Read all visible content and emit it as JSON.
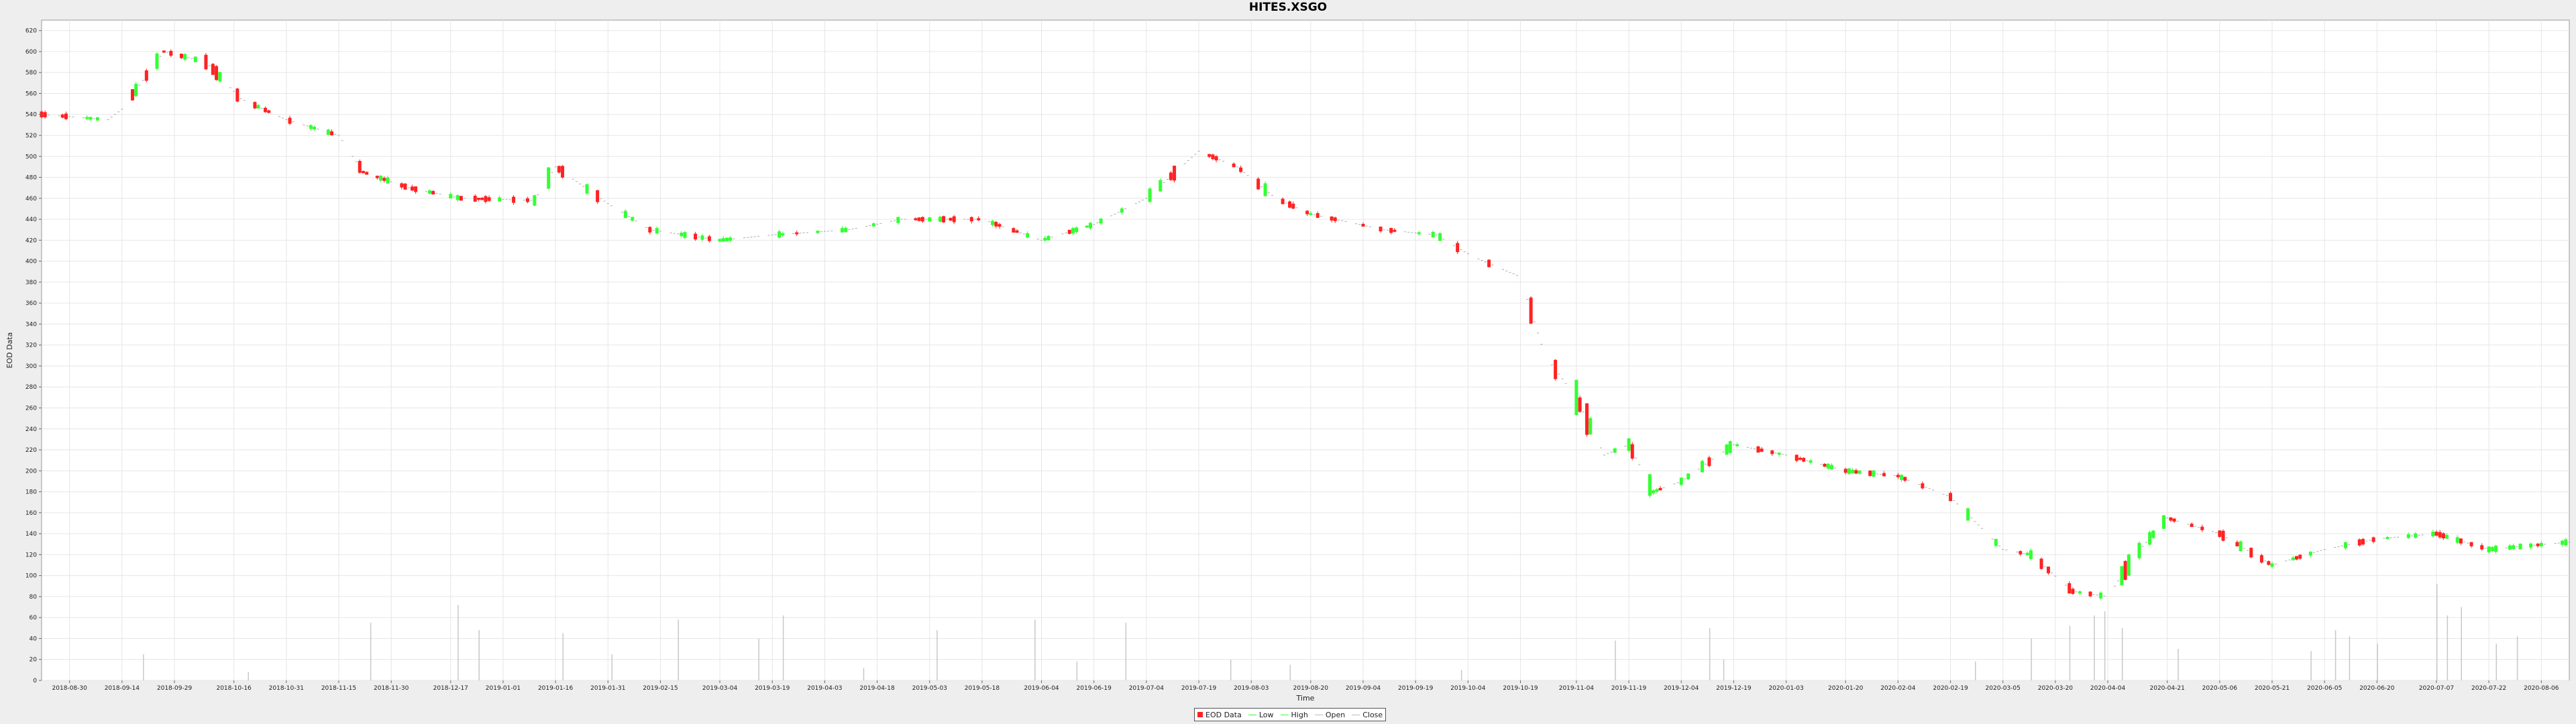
{
  "chart_data": {
    "type": "candlestick",
    "title": "HITES.XSGO",
    "xlabel": "Time",
    "ylabel": "EOD Data",
    "ylim": [
      0,
      630
    ],
    "yticks": [
      0,
      20,
      40,
      60,
      80,
      100,
      120,
      140,
      160,
      180,
      200,
      220,
      240,
      260,
      280,
      300,
      320,
      340,
      360,
      380,
      400,
      420,
      440,
      460,
      480,
      500,
      520,
      540,
      560,
      580,
      600,
      620
    ],
    "xrange": [
      "2018-08-22",
      "2020-08-14"
    ],
    "xticks": [
      "2018-08-30",
      "2018-09-14",
      "2018-09-29",
      "2018-10-16",
      "2018-10-31",
      "2018-11-15",
      "2018-11-30",
      "2018-12-17",
      "2019-01-01",
      "2019-01-16",
      "2019-01-31",
      "2019-02-15",
      "2019-03-04",
      "2019-03-19",
      "2019-04-03",
      "2019-04-18",
      "2019-05-03",
      "2019-05-18",
      "2019-06-04",
      "2019-06-19",
      "2019-07-04",
      "2019-07-19",
      "2019-08-03",
      "2019-08-20",
      "2019-09-04",
      "2019-09-19",
      "2019-10-04",
      "2019-10-19",
      "2019-11-04",
      "2019-11-19",
      "2019-12-04",
      "2019-12-19",
      "2020-01-03",
      "2020-01-20",
      "2020-02-04",
      "2020-02-19",
      "2020-03-05",
      "2020-03-20",
      "2020-04-04",
      "2020-04-21",
      "2020-05-06",
      "2020-05-21",
      "2020-06-05",
      "2020-06-20",
      "2020-07-07",
      "2020-07-22",
      "2020-08-06"
    ],
    "grid": true,
    "legend_position": "bottom-center",
    "legend": [
      "EOD Data",
      "Low",
      "High",
      "Open",
      "Close"
    ],
    "colors": {
      "up": "#33ff33",
      "down": "#ff2222",
      "volume": "#c8c8c8",
      "grid": "#e6e6e6",
      "plot_bg": "#ffffff"
    },
    "price_path": [
      [
        "2018-08-22",
        540
      ],
      [
        "2018-09-10",
        535
      ],
      [
        "2018-09-14",
        545
      ],
      [
        "2018-09-26",
        600
      ],
      [
        "2018-10-08",
        590
      ],
      [
        "2018-10-18",
        555
      ],
      [
        "2018-10-31",
        535
      ],
      [
        "2018-11-15",
        520
      ],
      [
        "2018-11-22",
        485
      ],
      [
        "2018-12-05",
        470
      ],
      [
        "2018-12-20",
        460
      ],
      [
        "2019-01-10",
        458
      ],
      [
        "2019-01-16",
        490
      ],
      [
        "2019-01-31",
        455
      ],
      [
        "2019-02-12",
        430
      ],
      [
        "2019-03-04",
        420
      ],
      [
        "2019-03-19",
        425
      ],
      [
        "2019-04-10",
        430
      ],
      [
        "2019-04-25",
        440
      ],
      [
        "2019-05-18",
        440
      ],
      [
        "2019-06-04",
        420
      ],
      [
        "2019-06-19",
        435
      ],
      [
        "2019-07-04",
        460
      ],
      [
        "2019-07-19",
        505
      ],
      [
        "2019-07-30",
        490
      ],
      [
        "2019-08-10",
        460
      ],
      [
        "2019-08-20",
        445
      ],
      [
        "2019-09-10",
        430
      ],
      [
        "2019-09-25",
        425
      ],
      [
        "2019-10-05",
        405
      ],
      [
        "2019-10-19",
        385
      ],
      [
        "2019-10-26",
        310
      ],
      [
        "2019-11-04",
        270
      ],
      [
        "2019-11-12",
        215
      ],
      [
        "2019-11-19",
        225
      ],
      [
        "2019-11-26",
        180
      ],
      [
        "2019-12-04",
        190
      ],
      [
        "2019-12-19",
        225
      ],
      [
        "2020-01-03",
        215
      ],
      [
        "2020-01-20",
        200
      ],
      [
        "2020-02-04",
        195
      ],
      [
        "2020-02-19",
        175
      ],
      [
        "2020-03-05",
        125
      ],
      [
        "2020-03-13",
        120
      ],
      [
        "2020-03-25",
        85
      ],
      [
        "2020-04-04",
        80
      ],
      [
        "2020-04-12",
        120
      ],
      [
        "2020-04-21",
        155
      ],
      [
        "2020-05-06",
        140
      ],
      [
        "2020-05-21",
        110
      ],
      [
        "2020-06-05",
        125
      ],
      [
        "2020-06-20",
        135
      ],
      [
        "2020-07-07",
        140
      ],
      [
        "2020-07-22",
        125
      ],
      [
        "2020-08-14",
        132
      ]
    ],
    "volume_spikes": [
      [
        "2018-09-20",
        25
      ],
      [
        "2018-10-20",
        8
      ],
      [
        "2018-11-24",
        55
      ],
      [
        "2018-12-19",
        72
      ],
      [
        "2018-12-25",
        48
      ],
      [
        "2019-01-18",
        45
      ],
      [
        "2019-02-01",
        25
      ],
      [
        "2019-02-20",
        58
      ],
      [
        "2019-03-15",
        40
      ],
      [
        "2019-03-22",
        62
      ],
      [
        "2019-04-14",
        12
      ],
      [
        "2019-05-05",
        48
      ],
      [
        "2019-06-02",
        58
      ],
      [
        "2019-06-14",
        18
      ],
      [
        "2019-06-28",
        55
      ],
      [
        "2019-07-28",
        20
      ],
      [
        "2019-08-14",
        15
      ],
      [
        "2019-10-02",
        10
      ],
      [
        "2019-11-15",
        38
      ],
      [
        "2019-12-12",
        50
      ],
      [
        "2019-12-16",
        20
      ],
      [
        "2020-02-26",
        18
      ],
      [
        "2020-03-13",
        40
      ],
      [
        "2020-03-24",
        52
      ],
      [
        "2020-03-31",
        62
      ],
      [
        "2020-04-03",
        66
      ],
      [
        "2020-04-08",
        50
      ],
      [
        "2020-04-24",
        30
      ],
      [
        "2020-06-01",
        28
      ],
      [
        "2020-06-08",
        48
      ],
      [
        "2020-06-12",
        42
      ],
      [
        "2020-06-20",
        35
      ],
      [
        "2020-07-07",
        92
      ],
      [
        "2020-07-10",
        62
      ],
      [
        "2020-07-14",
        70
      ],
      [
        "2020-07-24",
        35
      ],
      [
        "2020-07-30",
        42
      ]
    ]
  }
}
